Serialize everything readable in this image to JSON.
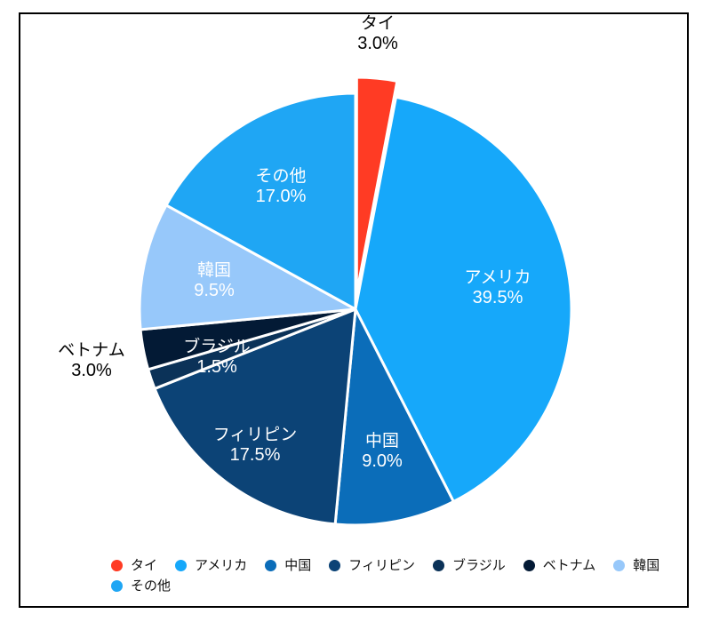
{
  "chart_data": {
    "type": "pie",
    "title": "",
    "legend_position": "bottom",
    "start_angle_deg": 0,
    "exploded_slice": "タイ",
    "slices": [
      {
        "label": "タイ",
        "value": 3.0,
        "pct_label": "3.0%",
        "color": "#FF3B24",
        "label_placement": "outside"
      },
      {
        "label": "アメリカ",
        "value": 39.5,
        "pct_label": "39.5%",
        "color": "#16A8FA",
        "label_placement": "inside"
      },
      {
        "label": "中国",
        "value": 9.0,
        "pct_label": "9.0%",
        "color": "#0B6DB9",
        "label_placement": "inside"
      },
      {
        "label": "フィリピン",
        "value": 17.5,
        "pct_label": "17.5%",
        "color": "#0C4376",
        "label_placement": "inside"
      },
      {
        "label": "ブラジル",
        "value": 1.5,
        "pct_label": "1.5%",
        "color": "#0B3258",
        "label_placement": "inside-offset"
      },
      {
        "label": "ベトナム",
        "value": 3.0,
        "pct_label": "3.0%",
        "color": "#031A35",
        "label_placement": "outside"
      },
      {
        "label": "韓国",
        "value": 9.5,
        "pct_label": "9.5%",
        "color": "#97C8FA",
        "label_placement": "inside"
      },
      {
        "label": "その他",
        "value": 17.0,
        "pct_label": "17.0%",
        "color": "#1FA6F4",
        "label_placement": "inside"
      }
    ]
  }
}
